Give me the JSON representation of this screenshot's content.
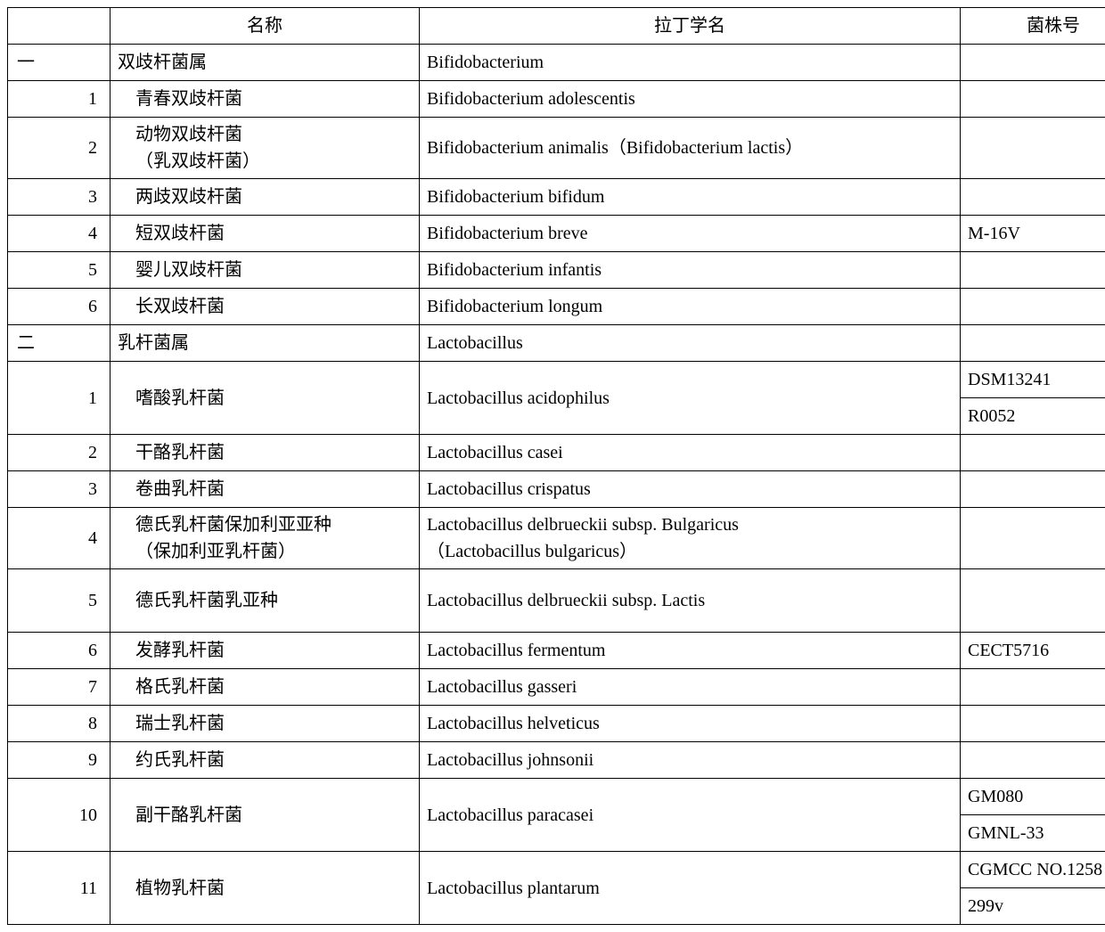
{
  "header": {
    "num": "",
    "name": "名称",
    "latin": "拉丁学名",
    "strain": "菌株号"
  },
  "rows": [
    {
      "num": "一",
      "numClass": "genus-num",
      "name": "双歧杆菌属",
      "nameClass": "cn",
      "latin": "Bifidobacterium",
      "strains": [
        ""
      ]
    },
    {
      "num": "1",
      "name": "青春双歧杆菌",
      "nameClass": "cn indent1",
      "latin": "Bifidobacterium adolescentis",
      "strains": [
        ""
      ]
    },
    {
      "num": "2",
      "name": "动物双歧杆菌\n（乳双歧杆菌）",
      "nameClass": "cn indent1",
      "latin": "Bifidobacterium animalis（Bifidobacterium lactis）",
      "strains": [
        ""
      ]
    },
    {
      "num": "3",
      "name": "两歧双歧杆菌",
      "nameClass": "cn indent1",
      "latin": "Bifidobacterium bifidum",
      "strains": [
        ""
      ]
    },
    {
      "num": "4",
      "name": "短双歧杆菌",
      "nameClass": "cn indent1",
      "latin": "Bifidobacterium breve",
      "strains": [
        "M-16V"
      ]
    },
    {
      "num": "5",
      "name": "婴儿双歧杆菌",
      "nameClass": "cn indent1",
      "latin": "Bifidobacterium infantis",
      "strains": [
        ""
      ]
    },
    {
      "num": "6",
      "name": "长双歧杆菌",
      "nameClass": "cn indent1",
      "latin": "Bifidobacterium longum",
      "strains": [
        ""
      ]
    },
    {
      "num": "二",
      "numClass": "genus-num",
      "name": "乳杆菌属",
      "nameClass": "cn",
      "latin": "Lactobacillus",
      "strains": [
        ""
      ]
    },
    {
      "num": "1",
      "name": "嗜酸乳杆菌",
      "nameClass": "cn indent1",
      "latin": "Lactobacillus acidophilus",
      "strains": [
        "DSM13241",
        "R0052"
      ]
    },
    {
      "num": "2",
      "name": "干酪乳杆菌",
      "nameClass": "cn indent1",
      "latin": "Lactobacillus casei",
      "strains": [
        ""
      ]
    },
    {
      "num": "3",
      "name": "卷曲乳杆菌",
      "nameClass": "cn indent1",
      "latin": "Lactobacillus crispatus",
      "strains": [
        ""
      ]
    },
    {
      "num": "4",
      "name": "德氏乳杆菌保加利亚亚种\n（保加利亚乳杆菌）",
      "nameClass": "cn indent1",
      "latin": "Lactobacillus delbrueckii subsp. Bulgaricus\n（Lactobacillus bulgaricus）",
      "strains": [
        ""
      ]
    },
    {
      "num": "5",
      "name": "德氏乳杆菌乳亚种",
      "nameClass": "cn indent1",
      "latin": "Lactobacillus delbrueckii subsp. Lactis",
      "strains": [
        ""
      ],
      "tall": true
    },
    {
      "num": "6",
      "name": "发酵乳杆菌",
      "nameClass": "cn indent1",
      "latin": "Lactobacillus fermentum",
      "strains": [
        "CECT5716"
      ]
    },
    {
      "num": "7",
      "name": "格氏乳杆菌",
      "nameClass": "cn indent1",
      "latin": "Lactobacillus gasseri",
      "strains": [
        ""
      ]
    },
    {
      "num": "8",
      "name": "瑞士乳杆菌",
      "nameClass": "cn indent1",
      "latin": "Lactobacillus helveticus",
      "strains": [
        ""
      ]
    },
    {
      "num": "9",
      "name": "约氏乳杆菌",
      "nameClass": "cn indent1",
      "latin": "Lactobacillus johnsonii",
      "strains": [
        ""
      ]
    },
    {
      "num": "10",
      "name": "副干酪乳杆菌",
      "nameClass": "cn indent1",
      "latin": "Lactobacillus paracasei",
      "strains": [
        "GM080",
        "GMNL-33"
      ]
    },
    {
      "num": "11",
      "name": "植物乳杆菌",
      "nameClass": "cn indent1",
      "latin": "Lactobacillus plantarum",
      "strains": [
        "CGMCC NO.1258",
        "299v"
      ]
    }
  ]
}
